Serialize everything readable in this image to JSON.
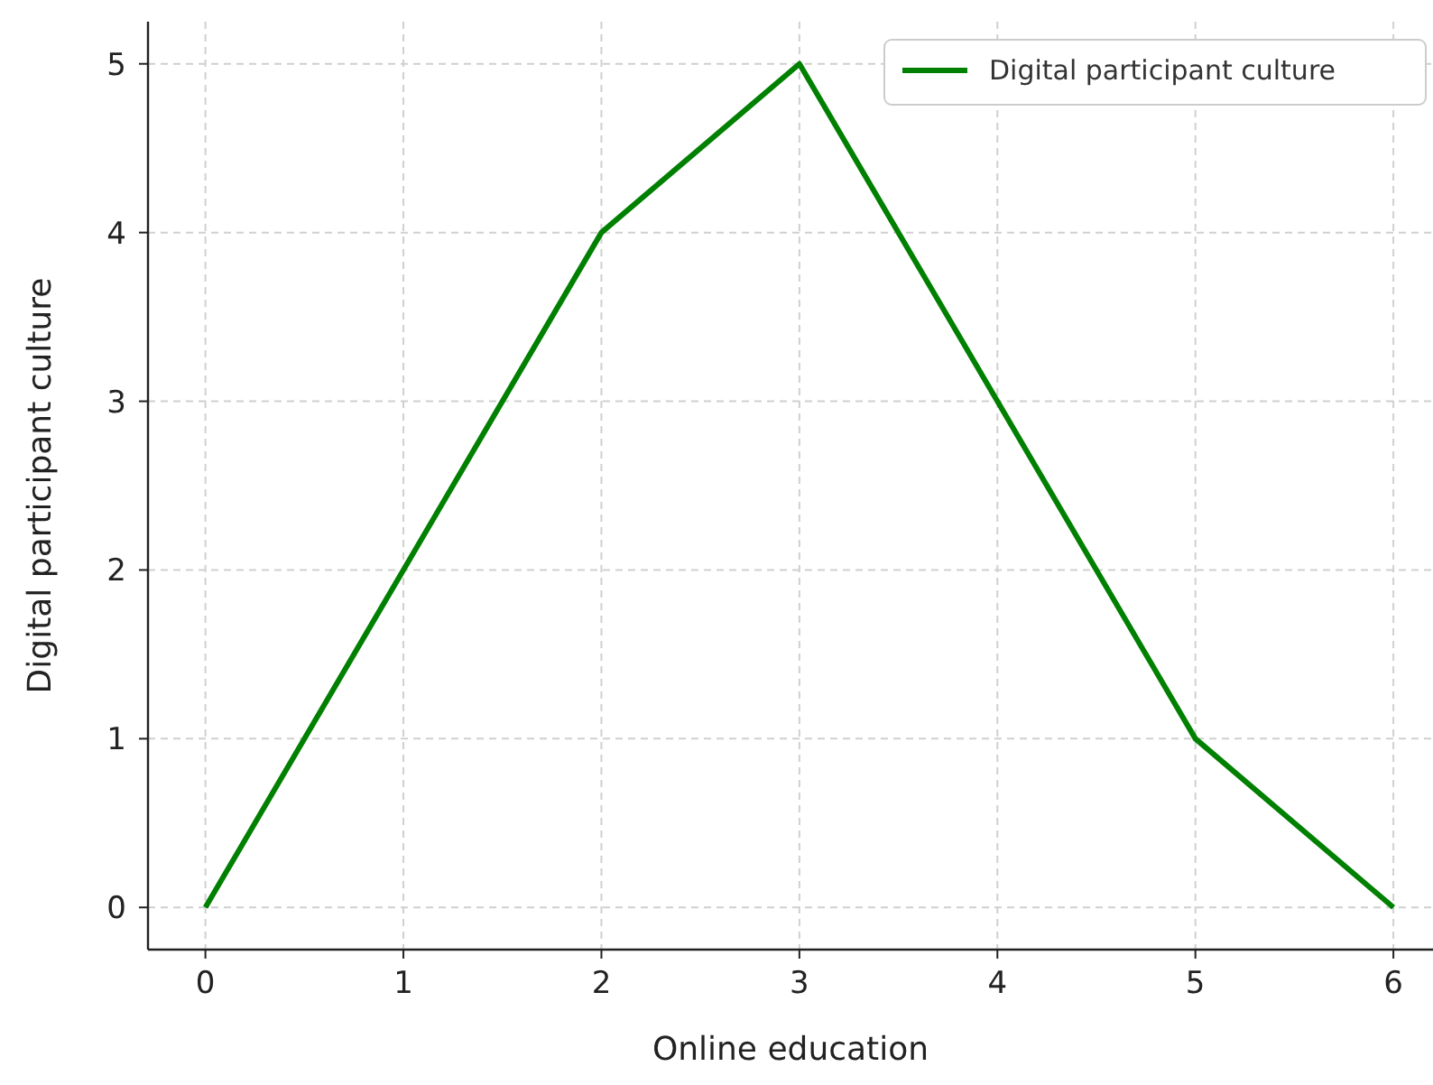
{
  "chart_data": {
    "type": "line",
    "xlabel": "Online education",
    "ylabel": "Digital participant culture",
    "x": [
      0,
      1,
      2,
      3,
      4,
      5,
      6
    ],
    "series": [
      {
        "name": "Digital participant culture",
        "color": "#008000",
        "values": [
          0,
          2,
          4,
          5,
          3,
          1,
          0
        ]
      }
    ],
    "xlim": [
      -0.29,
      6.2
    ],
    "ylim": [
      -0.25,
      5.25
    ],
    "xticks": [
      0,
      1,
      2,
      3,
      4,
      5,
      6
    ],
    "yticks": [
      0,
      1,
      2,
      3,
      4,
      5
    ],
    "grid": true,
    "legend": "top right",
    "marker": "none",
    "line_style": "solid"
  }
}
